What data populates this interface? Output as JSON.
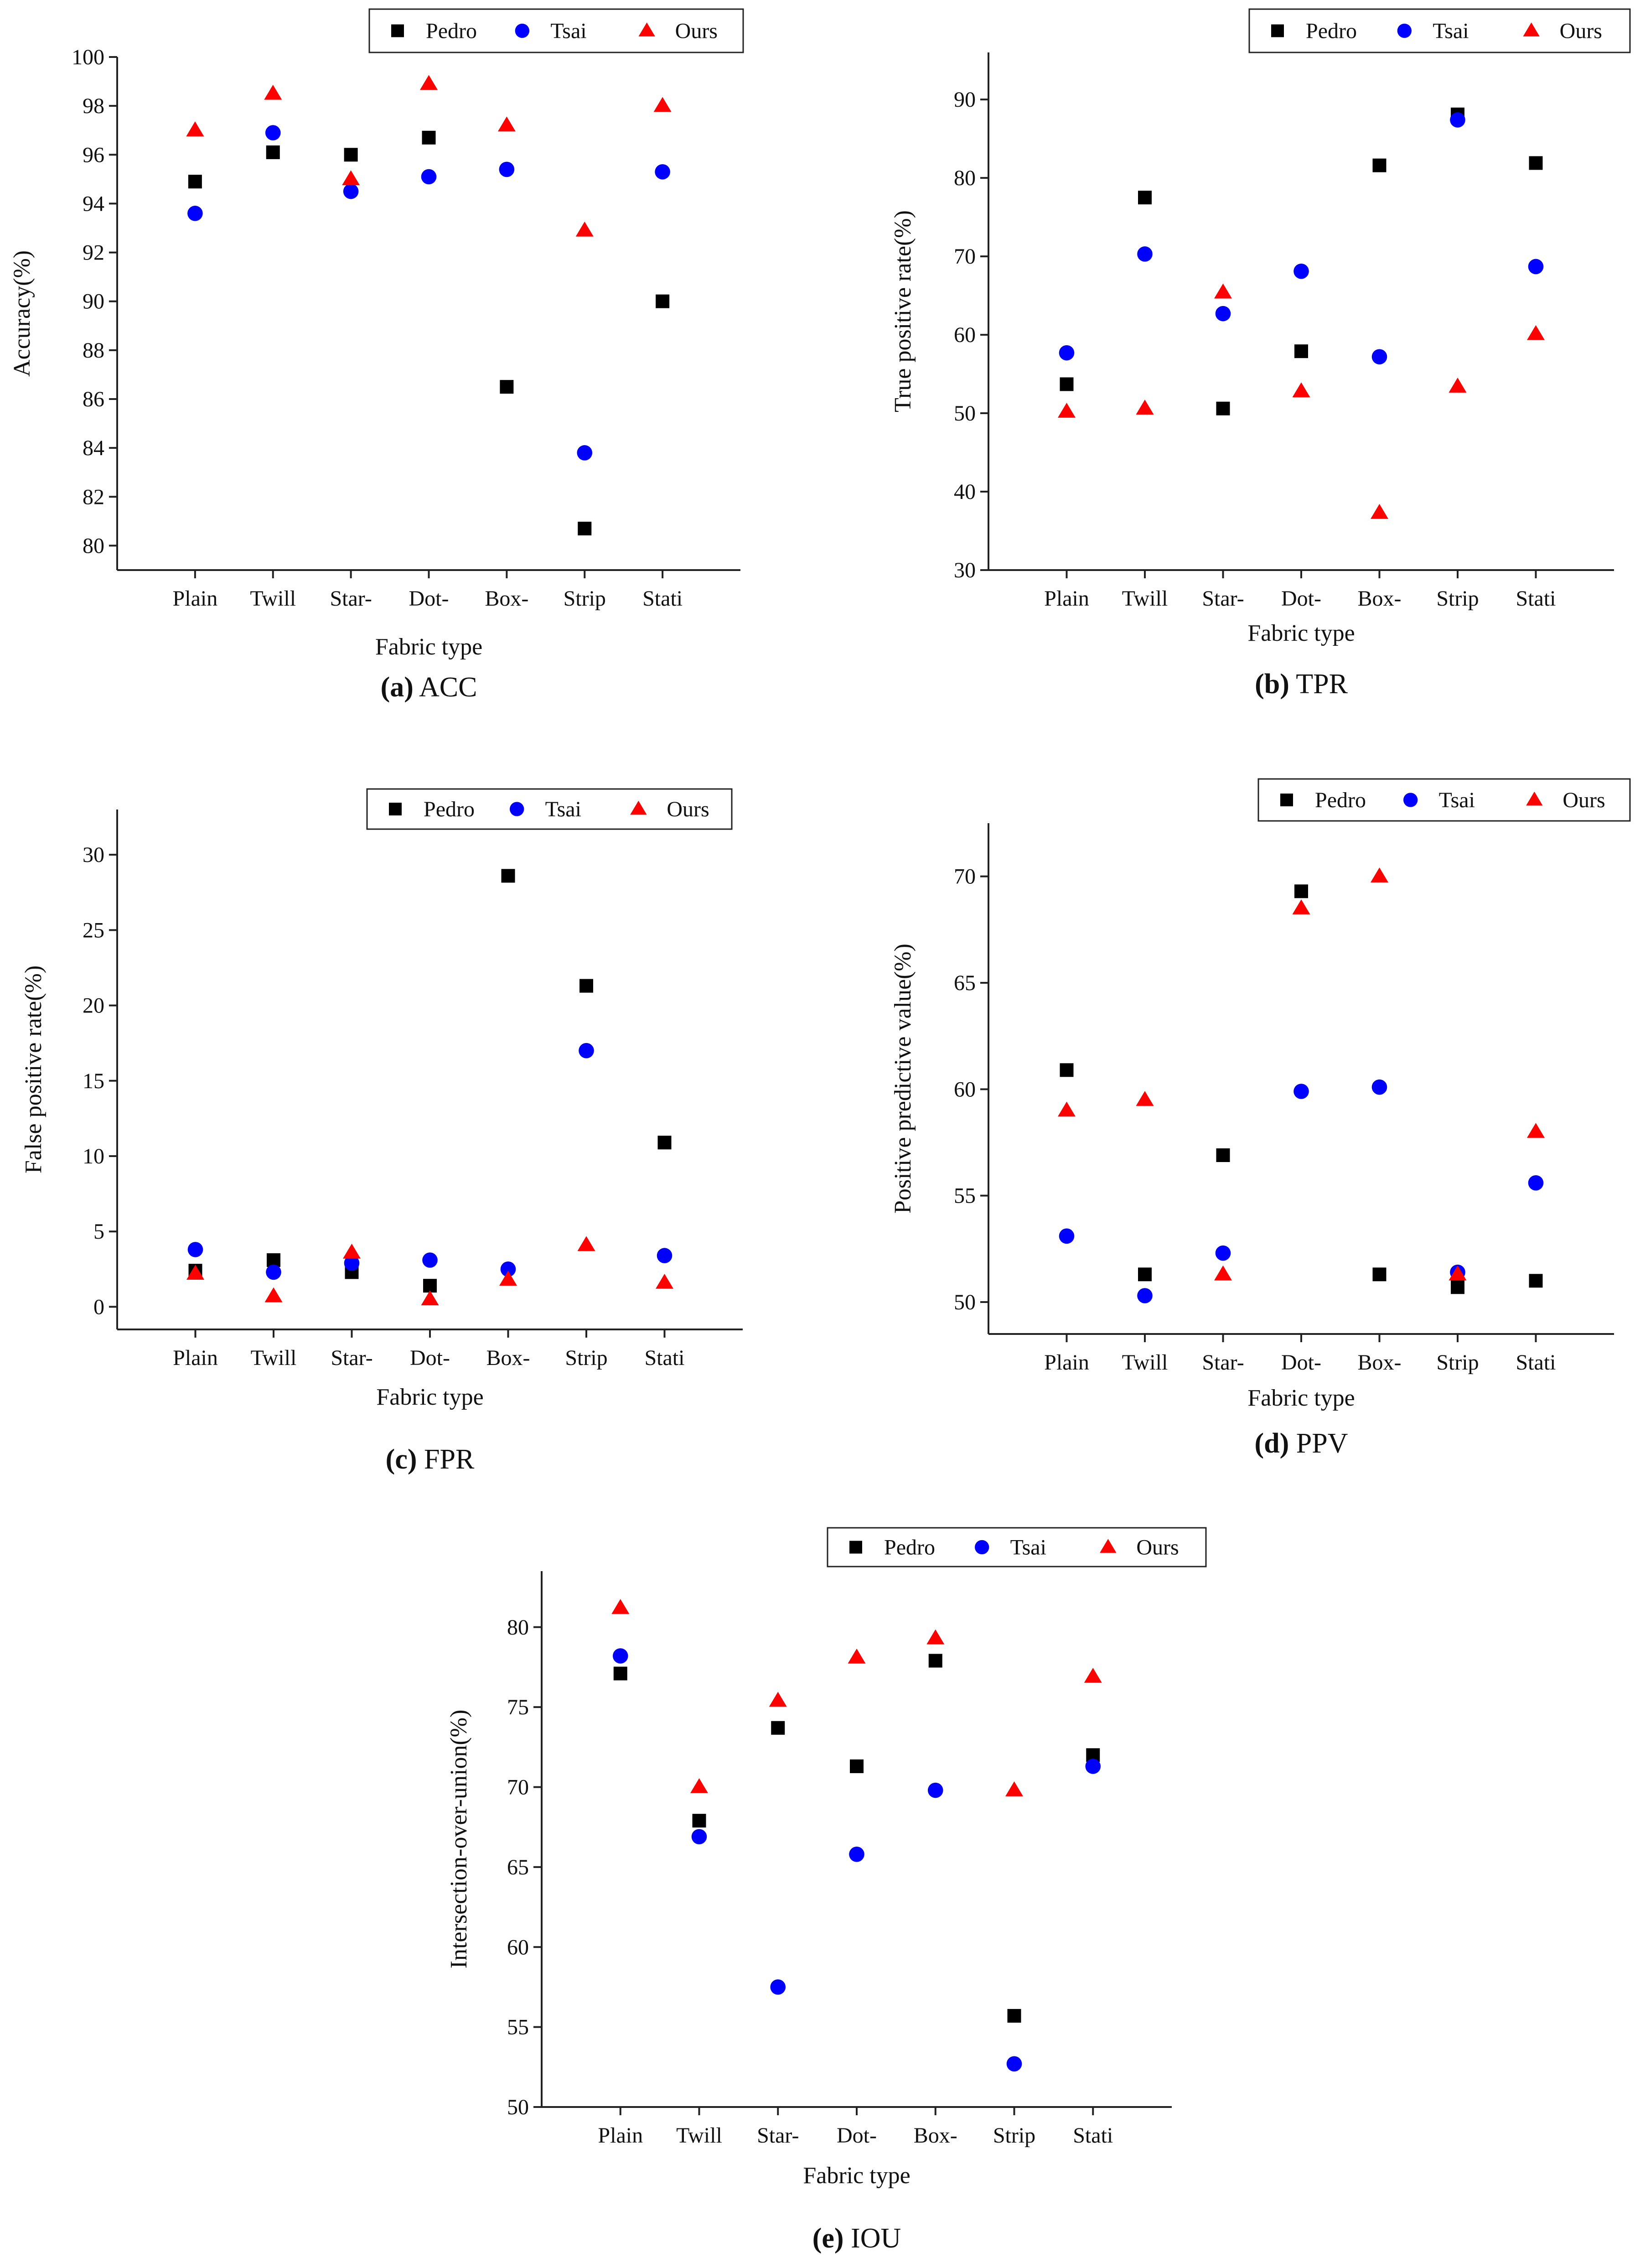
{
  "colors": {
    "axis": "#222222",
    "series": {
      "Pedro": "#000000",
      "Tsai": "#0000ff",
      "Ours": "#ff0000"
    }
  },
  "series_order": [
    "Pedro",
    "Tsai",
    "Ours"
  ],
  "series_markers": {
    "Pedro": "square",
    "Tsai": "circle",
    "Ours": "triangle"
  },
  "chart_data": [
    {
      "type": "scatter",
      "caption_letter": "(a)",
      "caption_text": "ACC",
      "title": "(a) ACC",
      "xlabel": "Fabric type",
      "ylabel": "Accuracy(%)",
      "categories": [
        "Plain",
        "Twill",
        "Star-",
        "Dot-",
        "Box-",
        "Strip",
        "Stati"
      ],
      "ylim": [
        79,
        100
      ],
      "yticks": [
        80,
        82,
        84,
        86,
        88,
        90,
        92,
        94,
        96,
        98,
        100
      ],
      "legend_position": "top-right",
      "series": [
        {
          "name": "Pedro",
          "values": [
            94.9,
            96.1,
            96.0,
            96.7,
            86.5,
            80.7,
            90.0
          ]
        },
        {
          "name": "Tsai",
          "values": [
            93.6,
            96.9,
            94.5,
            95.1,
            95.4,
            83.8,
            95.3
          ]
        },
        {
          "name": "Ours",
          "values": [
            97.0,
            98.5,
            95.0,
            98.9,
            97.2,
            92.9,
            98.0
          ]
        }
      ]
    },
    {
      "type": "scatter",
      "caption_letter": "(b)",
      "caption_text": "TPR",
      "title": "(b) TPR",
      "xlabel": "Fabric type",
      "ylabel": "True positive rate(%)",
      "categories": [
        "Plain",
        "Twill",
        "Star-",
        "Dot-",
        "Box-",
        "Strip",
        "Stati"
      ],
      "ylim": [
        30,
        96
      ],
      "yticks": [
        30,
        40,
        50,
        60,
        70,
        80,
        90
      ],
      "legend_position": "top-right",
      "series": [
        {
          "name": "Pedro",
          "values": [
            53.7,
            77.5,
            50.6,
            57.9,
            81.6,
            88.1,
            81.9
          ]
        },
        {
          "name": "Tsai",
          "values": [
            57.7,
            70.3,
            62.7,
            68.1,
            57.2,
            87.4,
            68.7
          ]
        },
        {
          "name": "Ours",
          "values": [
            50.2,
            50.6,
            65.4,
            52.8,
            37.3,
            53.4,
            60.1
          ]
        }
      ]
    },
    {
      "type": "scatter",
      "caption_letter": "(c)",
      "caption_text": "FPR",
      "title": "(c) FPR",
      "xlabel": "Fabric type",
      "ylabel": "False positive rate(%)",
      "categories": [
        "Plain",
        "Twill",
        "Star-",
        "Dot-",
        "Box-",
        "Strip",
        "Stati"
      ],
      "ylim": [
        -1.5,
        33
      ],
      "yticks": [
        0,
        5,
        10,
        15,
        20,
        25,
        30
      ],
      "legend_position": "top-right",
      "series": [
        {
          "name": "Pedro",
          "values": [
            2.4,
            3.1,
            2.3,
            1.4,
            28.6,
            21.3,
            10.9
          ]
        },
        {
          "name": "Tsai",
          "values": [
            3.8,
            2.3,
            2.9,
            3.1,
            2.5,
            17.0,
            3.4
          ]
        },
        {
          "name": "Ours",
          "values": [
            2.2,
            0.7,
            3.6,
            0.5,
            1.8,
            4.1,
            1.6
          ]
        }
      ]
    },
    {
      "type": "scatter",
      "caption_letter": "(d)",
      "caption_text": "PPV",
      "title": "(d) PPV",
      "xlabel": "Fabric type",
      "ylabel": "Positive predictive value(%)",
      "categories": [
        "Plain",
        "Twill",
        "Star-",
        "Dot-",
        "Box-",
        "Strip",
        "Stati"
      ],
      "ylim": [
        48.5,
        72.5
      ],
      "yticks": [
        50,
        55,
        60,
        65,
        70
      ],
      "legend_position": "top-right",
      "series": [
        {
          "name": "Pedro",
          "values": [
            60.9,
            51.3,
            56.9,
            69.3,
            51.3,
            50.7,
            51.0
          ]
        },
        {
          "name": "Tsai",
          "values": [
            53.1,
            50.3,
            52.3,
            59.9,
            60.1,
            51.4,
            55.6
          ]
        },
        {
          "name": "Ours",
          "values": [
            59.0,
            59.5,
            51.3,
            68.5,
            70.0,
            51.3,
            58.0
          ]
        }
      ]
    },
    {
      "type": "scatter",
      "caption_letter": "(e)",
      "caption_text": "IOU",
      "title": "(e) IOU",
      "xlabel": "Fabric type",
      "ylabel": "Intersection-over-union(%)",
      "categories": [
        "Plain",
        "Twill",
        "Star-",
        "Dot-",
        "Box-",
        "Strip",
        "Stati"
      ],
      "ylim": [
        50,
        83.5
      ],
      "yticks": [
        50,
        55,
        60,
        65,
        70,
        75,
        80
      ],
      "legend_position": "top-right",
      "series": [
        {
          "name": "Pedro",
          "values": [
            77.1,
            67.9,
            73.7,
            71.3,
            77.9,
            55.7,
            72.0
          ]
        },
        {
          "name": "Tsai",
          "values": [
            78.2,
            66.9,
            57.5,
            65.8,
            69.8,
            52.7,
            71.3
          ]
        },
        {
          "name": "Ours",
          "values": [
            81.2,
            70.0,
            75.4,
            78.1,
            79.3,
            69.8,
            76.9
          ]
        }
      ]
    }
  ]
}
